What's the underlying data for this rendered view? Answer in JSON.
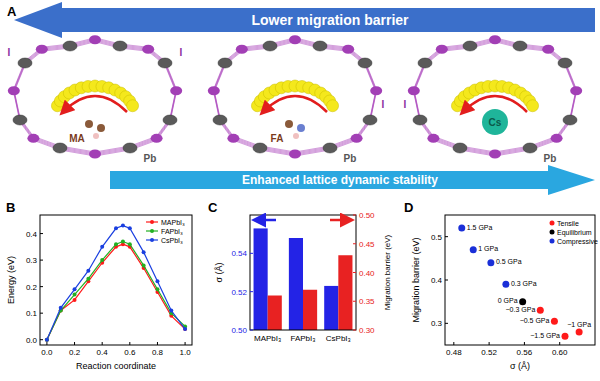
{
  "diagram": {
    "panel_label": "A",
    "top_arrow": "Lower migration barrier",
    "bottom_arrow": "Enhanced lattice dynamic stability",
    "structures": [
      {
        "cation": "MA",
        "iodide_labels": [
          "I",
          "I"
        ],
        "lead_label": "Pb"
      },
      {
        "cation": "FA",
        "iodide_labels": [
          "I"
        ],
        "lead_label": "Pb"
      },
      {
        "cation": "Cs",
        "iodide_labels": [
          "I"
        ],
        "lead_label": "Pb"
      }
    ]
  },
  "chart_data": [
    {
      "type": "line",
      "title": "B",
      "x_label": "Reaction coordinate",
      "y_label": "Energy (eV)",
      "x": [
        0,
        0.1,
        0.2,
        0.3,
        0.4,
        0.5,
        0.55,
        0.6,
        0.7,
        0.8,
        0.9,
        1.0
      ],
      "series": [
        {
          "name": "MAPbI₃",
          "color": "#ff1a1a",
          "values": [
            0,
            0.11,
            0.15,
            0.22,
            0.29,
            0.35,
            0.36,
            0.35,
            0.27,
            0.18,
            0.09,
            0.04
          ]
        },
        {
          "name": "FAPbI₃",
          "color": "#22b022",
          "values": [
            0,
            0.11,
            0.17,
            0.23,
            0.3,
            0.36,
            0.37,
            0.36,
            0.28,
            0.19,
            0.1,
            0.05
          ]
        },
        {
          "name": "CsPbI₃",
          "color": "#1a3fe0",
          "values": [
            0,
            0.12,
            0.19,
            0.26,
            0.35,
            0.42,
            0.43,
            0.42,
            0.33,
            0.22,
            0.11,
            0.04
          ]
        }
      ],
      "xlim": [
        -0.05,
        1.05
      ],
      "ylim": [
        -0.02,
        0.47
      ],
      "xticks": [
        {
          "value": 0,
          "label": "0.0"
        },
        {
          "value": 0.2,
          "label": "0.2"
        },
        {
          "value": 0.4,
          "label": "0.4"
        },
        {
          "value": 0.6,
          "label": "0.6"
        },
        {
          "value": 0.8,
          "label": "0.8"
        },
        {
          "value": 1,
          "label": "1.0"
        }
      ],
      "yticks": [
        {
          "value": 0,
          "label": "0.0"
        },
        0.1,
        0.2,
        0.3,
        0.4
      ],
      "legend": "upper-right",
      "marker": "circle",
      "line_style": "solid"
    },
    {
      "type": "bar",
      "title": "C",
      "y_label": "σ (Å)",
      "y2_label": "Migration barrier (eV)",
      "categories": [
        "MAPbI₃",
        "FAPbI₃",
        "CsPbI₃"
      ],
      "series": [
        {
          "color": "#2323e6",
          "values": [
            0.553,
            0.548,
            0.523
          ]
        },
        {
          "color": "#e82222",
          "values": [
            0.36,
            0.37,
            0.43
          ],
          "axis": "y2"
        }
      ],
      "ylim": [
        0.5,
        0.56
      ],
      "yticks": [
        {
          "value": 0.5,
          "label": "0.50"
        },
        0.52,
        0.54
      ],
      "y2lim": [
        0.3,
        0.5
      ],
      "y2ticks": [
        {
          "value": 0.3,
          "label": "0.30"
        },
        0.35,
        {
          "value": 0.4,
          "label": "0.40"
        },
        0.45,
        {
          "value": 0.5,
          "label": "0.50"
        }
      ]
    },
    {
      "type": "scatter",
      "title": "D",
      "x_label": "σ (Å)",
      "y_label": "Migration barrier (eV)",
      "series": [
        {
          "name": "Tensile",
          "color": "#ff1a1a",
          "x": [
            0.578,
            0.594,
            0.622,
            0.606
          ],
          "values": [
            0.33,
            0.305,
            0.28,
            0.27
          ],
          "point_labels": [
            "−0.3 GPa",
            "−0.5 GPa",
            "−1 GPa",
            "−1.5 GPa"
          ]
        },
        {
          "name": "Equilibrium",
          "color": "#000000",
          "x": [
            0.558
          ],
          "values": [
            0.35
          ],
          "point_labels": [
            "0 GPa"
          ]
        },
        {
          "name": "Compressive",
          "color": "#1a2fd8",
          "x": [
            0.489,
            0.502,
            0.522,
            0.539
          ],
          "values": [
            0.52,
            0.47,
            0.44,
            0.39
          ],
          "point_labels": [
            "1.5 GPa",
            "1 GPa",
            "0.5 GPa",
            "0.3 GPa"
          ]
        }
      ],
      "xlim": [
        0.47,
        0.64
      ],
      "ylim": [
        0.25,
        0.55
      ],
      "xticks": [
        0.48,
        0.52,
        0.56,
        {
          "value": 0.6,
          "label": "0.60"
        }
      ],
      "yticks": [
        0.3,
        0.4,
        0.5
      ],
      "legend": "upper-right",
      "marker": "circle"
    }
  ]
}
